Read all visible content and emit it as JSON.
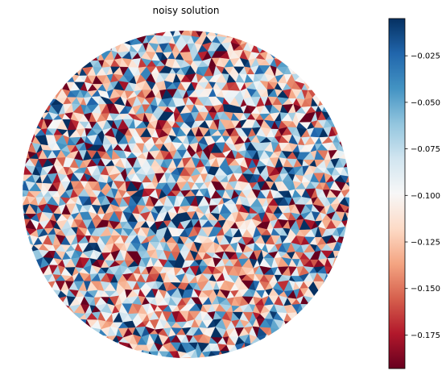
{
  "chart_data": {
    "type": "heatmap",
    "title": "noisy solution",
    "domain_shape": "disk",
    "colormap": {
      "name": "RdBu",
      "stops": [
        "#67001f",
        "#b2182b",
        "#d6604d",
        "#f4a582",
        "#fddbc7",
        "#f7f7f7",
        "#d1e5f0",
        "#92c5de",
        "#4393c3",
        "#2166ac",
        "#053061"
      ]
    },
    "colorbar": {
      "vmin": -0.193,
      "vmax": -0.005,
      "ticks": [
        {
          "value": -0.175,
          "label": "−0.175"
        },
        {
          "value": -0.15,
          "label": "−0.150"
        },
        {
          "value": -0.125,
          "label": "−0.125"
        },
        {
          "value": -0.1,
          "label": "−0.100"
        },
        {
          "value": -0.075,
          "label": "−0.075"
        },
        {
          "value": -0.05,
          "label": "−0.050"
        },
        {
          "value": -0.025,
          "label": "−0.025"
        }
      ]
    },
    "value_range": [
      -0.193,
      -0.005
    ],
    "axes_visible": false
  }
}
